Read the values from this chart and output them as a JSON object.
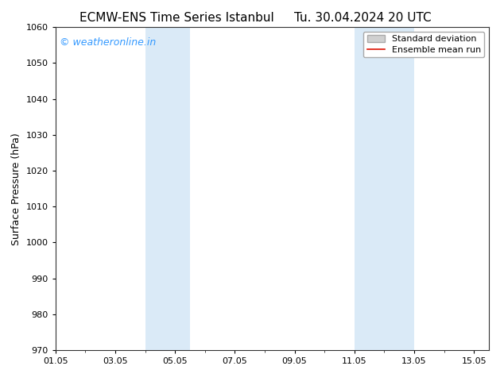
{
  "title_left": "ECMW-ENS Time Series Istanbul",
  "title_right": "Tu. 30.04.2024 20 UTC",
  "ylabel": "Surface Pressure (hPa)",
  "ylim": [
    970,
    1060
  ],
  "yticks": [
    970,
    980,
    990,
    1000,
    1010,
    1020,
    1030,
    1040,
    1050,
    1060
  ],
  "xlim": [
    1.0,
    15.5
  ],
  "xtick_positions": [
    1,
    3,
    5,
    7,
    9,
    11,
    13,
    15
  ],
  "xtick_labels": [
    "01.05",
    "03.05",
    "05.05",
    "07.05",
    "09.05",
    "11.05",
    "13.05",
    "15.05"
  ],
  "shaded_regions": [
    {
      "start": 4.0,
      "end": 5.5
    },
    {
      "start": 11.0,
      "end": 13.0
    }
  ],
  "shaded_color": "#daeaf7",
  "background_color": "#ffffff",
  "watermark_text": "© weatheronline.in",
  "watermark_color": "#3399ff",
  "legend_std_color": "#d0d0d0",
  "legend_std_edge": "#aaaaaa",
  "legend_mean_color": "#dd1100",
  "title_fontsize": 11,
  "axis_label_fontsize": 9,
  "tick_fontsize": 8,
  "watermark_fontsize": 9,
  "legend_fontsize": 8
}
